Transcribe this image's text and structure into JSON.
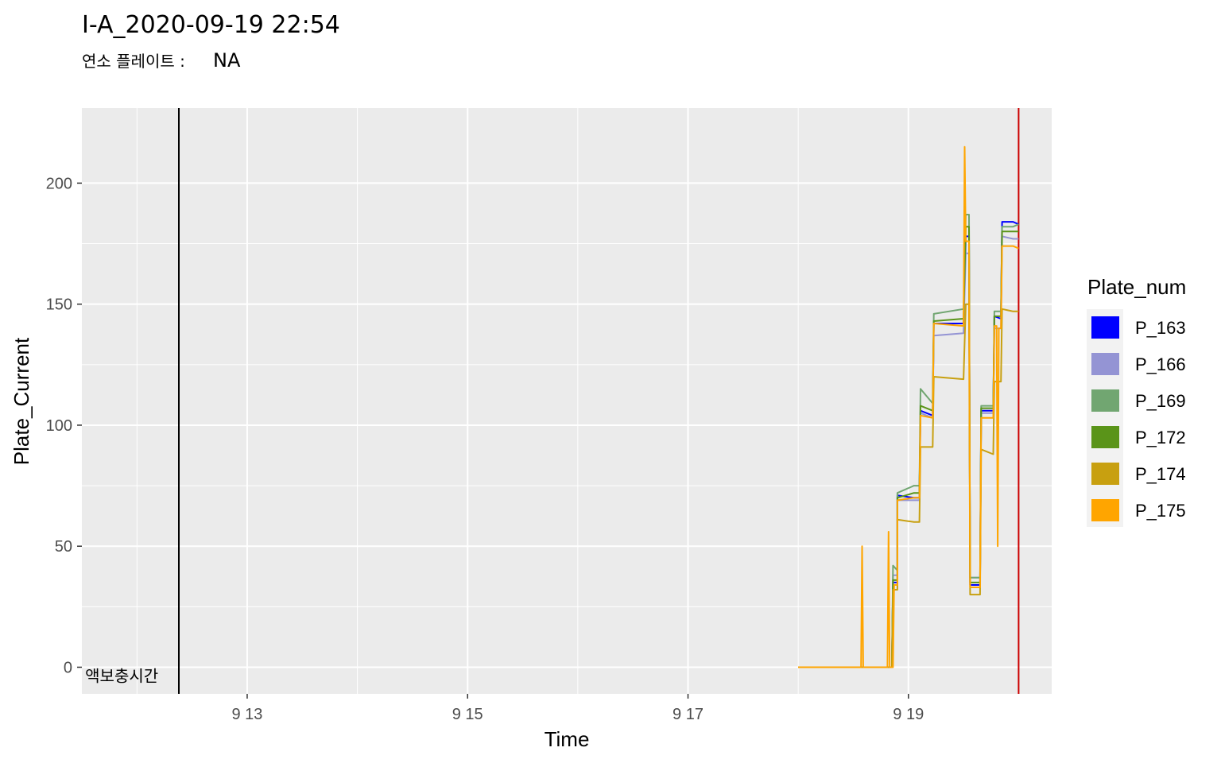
{
  "chart_data": {
    "type": "line",
    "title": "I-A_2020-09-19 22:54",
    "subtitle_label": "연소 플레이트 :",
    "subtitle_value": "NA",
    "xlabel": "Time",
    "ylabel": "Plate_Current",
    "x_tick_labels": [
      "9 13",
      "9 15",
      "9 17",
      "9 19"
    ],
    "x_ticks": [
      13,
      15,
      17,
      19
    ],
    "xlim": [
      11.5,
      20.3
    ],
    "y_ticks": [
      0,
      50,
      100,
      150,
      200
    ],
    "ylim": [
      -11,
      231
    ],
    "grid": true,
    "legend": {
      "title": "Plate_num",
      "position": "right"
    },
    "vlines": [
      {
        "x": 12.38,
        "color": "#000000"
      },
      {
        "x": 20.0,
        "color": "#cc0000"
      }
    ],
    "annotation": {
      "text": "액보충시간",
      "x": 11.53,
      "y": -2
    },
    "series": [
      {
        "name": "P_163",
        "color": "#0000ff",
        "points": [
          [
            18.0,
            0
          ],
          [
            18.85,
            0
          ],
          [
            18.86,
            35
          ],
          [
            18.9,
            35
          ],
          [
            18.9,
            71
          ],
          [
            19.05,
            70
          ],
          [
            19.1,
            70
          ],
          [
            19.11,
            106
          ],
          [
            19.22,
            104
          ],
          [
            19.23,
            142
          ],
          [
            19.5,
            142
          ],
          [
            19.52,
            178
          ],
          [
            19.55,
            178
          ],
          [
            19.56,
            34
          ],
          [
            19.65,
            34
          ],
          [
            19.66,
            106
          ],
          [
            19.77,
            106
          ],
          [
            19.78,
            145
          ],
          [
            19.84,
            144
          ],
          [
            19.85,
            184
          ],
          [
            19.95,
            184
          ],
          [
            20.0,
            183
          ]
        ]
      },
      {
        "name": "P_166",
        "color": "#9494d4",
        "points": [
          [
            18.0,
            0
          ],
          [
            18.85,
            0
          ],
          [
            18.86,
            38
          ],
          [
            18.9,
            38
          ],
          [
            18.9,
            69
          ],
          [
            19.05,
            69
          ],
          [
            19.1,
            69
          ],
          [
            19.11,
            105
          ],
          [
            19.22,
            103
          ],
          [
            19.23,
            137
          ],
          [
            19.5,
            138
          ],
          [
            19.52,
            171
          ],
          [
            19.55,
            171
          ],
          [
            19.56,
            37
          ],
          [
            19.65,
            37
          ],
          [
            19.66,
            105
          ],
          [
            19.77,
            105
          ],
          [
            19.78,
            140
          ],
          [
            19.84,
            140
          ],
          [
            19.85,
            178
          ],
          [
            19.95,
            177
          ],
          [
            20.0,
            177
          ]
        ]
      },
      {
        "name": "P_169",
        "color": "#71a671",
        "points": [
          [
            18.0,
            0
          ],
          [
            18.85,
            0
          ],
          [
            18.86,
            42
          ],
          [
            18.9,
            40
          ],
          [
            18.9,
            72
          ],
          [
            19.05,
            75
          ],
          [
            19.1,
            75
          ],
          [
            19.11,
            115
          ],
          [
            19.22,
            109
          ],
          [
            19.23,
            146
          ],
          [
            19.5,
            148
          ],
          [
            19.52,
            187
          ],
          [
            19.55,
            187
          ],
          [
            19.56,
            37
          ],
          [
            19.65,
            37
          ],
          [
            19.66,
            108
          ],
          [
            19.77,
            108
          ],
          [
            19.78,
            147
          ],
          [
            19.84,
            147
          ],
          [
            19.85,
            182
          ],
          [
            19.95,
            182
          ],
          [
            20.0,
            183
          ]
        ]
      },
      {
        "name": "P_172",
        "color": "#5a9419",
        "points": [
          [
            18.0,
            0
          ],
          [
            18.85,
            0
          ],
          [
            18.86,
            36
          ],
          [
            18.9,
            36
          ],
          [
            18.9,
            70
          ],
          [
            19.05,
            72
          ],
          [
            19.1,
            72
          ],
          [
            19.11,
            108
          ],
          [
            19.22,
            106
          ],
          [
            19.23,
            143
          ],
          [
            19.5,
            144
          ],
          [
            19.52,
            182
          ],
          [
            19.55,
            182
          ],
          [
            19.56,
            35
          ],
          [
            19.65,
            35
          ],
          [
            19.66,
            107
          ],
          [
            19.77,
            107
          ],
          [
            19.78,
            145
          ],
          [
            19.84,
            145
          ],
          [
            19.85,
            180
          ],
          [
            19.95,
            180
          ],
          [
            20.0,
            180
          ]
        ]
      },
      {
        "name": "P_174",
        "color": "#c8a010",
        "points": [
          [
            18.0,
            0
          ],
          [
            18.85,
            0
          ],
          [
            18.86,
            32
          ],
          [
            18.9,
            32
          ],
          [
            18.9,
            61
          ],
          [
            19.05,
            60
          ],
          [
            19.1,
            60
          ],
          [
            19.11,
            91
          ],
          [
            19.22,
            91
          ],
          [
            19.23,
            120
          ],
          [
            19.5,
            119
          ],
          [
            19.52,
            150
          ],
          [
            19.55,
            150
          ],
          [
            19.56,
            30
          ],
          [
            19.65,
            30
          ],
          [
            19.66,
            90
          ],
          [
            19.77,
            88
          ],
          [
            19.78,
            118
          ],
          [
            19.84,
            118
          ],
          [
            19.85,
            148
          ],
          [
            19.95,
            147
          ],
          [
            20.0,
            147
          ]
        ]
      },
      {
        "name": "P_175",
        "color": "#ffa500",
        "points": [
          [
            18.0,
            0
          ],
          [
            18.57,
            0
          ],
          [
            18.58,
            50
          ],
          [
            18.59,
            0
          ],
          [
            18.81,
            0
          ],
          [
            18.82,
            56
          ],
          [
            18.83,
            0
          ],
          [
            18.86,
            0
          ],
          [
            18.87,
            34
          ],
          [
            18.9,
            34
          ],
          [
            18.9,
            69
          ],
          [
            19.05,
            70
          ],
          [
            19.1,
            70
          ],
          [
            19.11,
            104
          ],
          [
            19.22,
            103
          ],
          [
            19.23,
            142
          ],
          [
            19.5,
            141
          ],
          [
            19.51,
            215
          ],
          [
            19.52,
            176
          ],
          [
            19.55,
            176
          ],
          [
            19.56,
            33
          ],
          [
            19.65,
            33
          ],
          [
            19.66,
            103
          ],
          [
            19.77,
            103
          ],
          [
            19.78,
            141
          ],
          [
            19.8,
            141
          ],
          [
            19.81,
            50
          ],
          [
            19.82,
            140
          ],
          [
            19.84,
            140
          ],
          [
            19.85,
            174
          ],
          [
            19.95,
            174
          ],
          [
            20.0,
            173
          ]
        ]
      }
    ]
  }
}
